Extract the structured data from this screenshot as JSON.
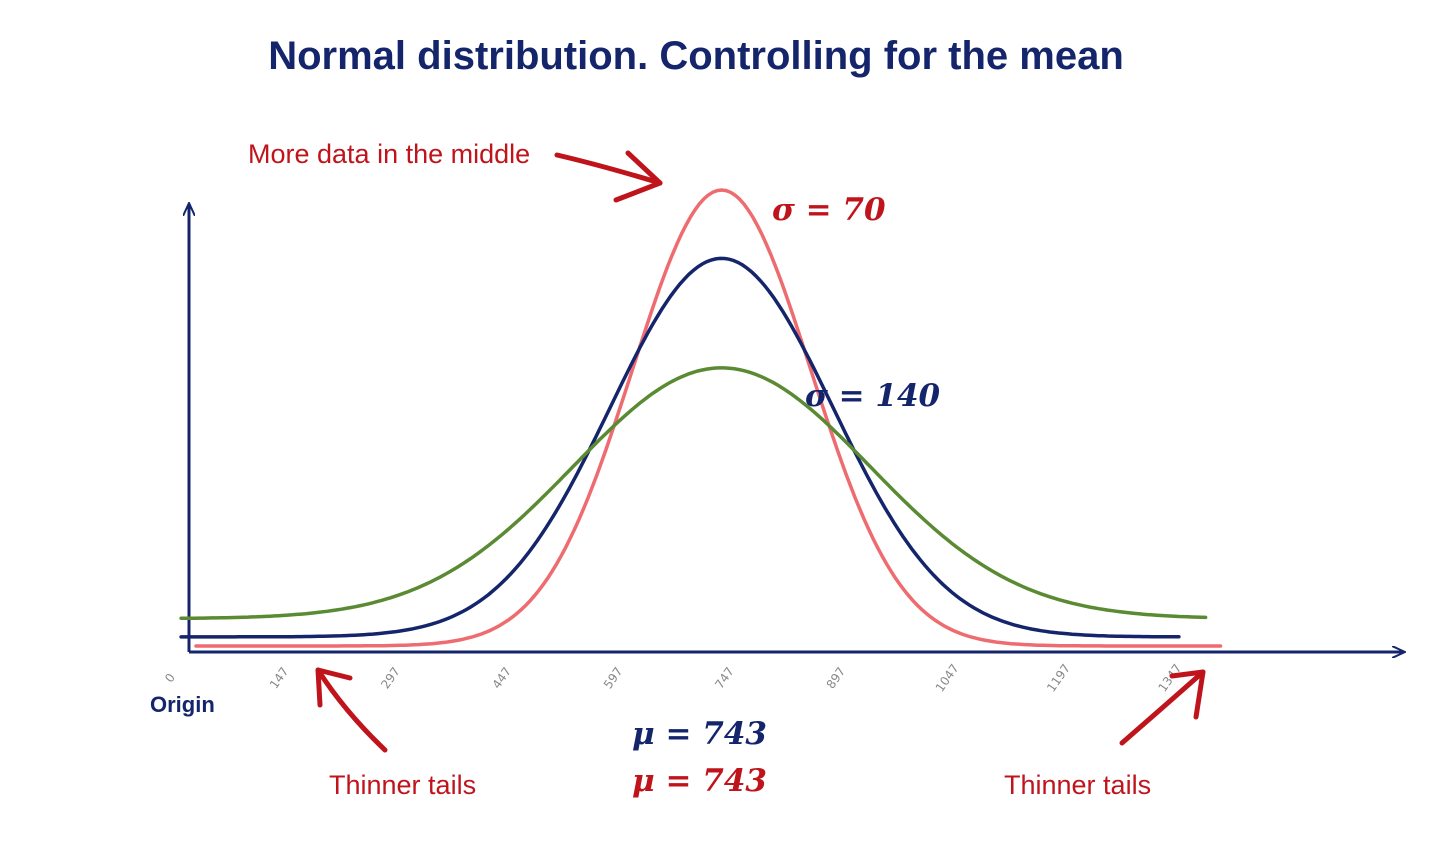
{
  "title": "Normal distribution. Controlling for the mean",
  "colors": {
    "title": "#14256b",
    "axis": "#14256b",
    "annotation": "#c0141c",
    "sigma_70_curve": "#ee6b6f",
    "sigma_140_curve": "#14256b",
    "wide_curve": "#5a8a32"
  },
  "annotations": {
    "middle": "More data in the middle",
    "tails_left": "Thinner tails",
    "tails_right": "Thinner tails",
    "origin": "Origin"
  },
  "labels": {
    "sigma_70": "σ = 70",
    "sigma_140": "σ = 140",
    "mu_blue": "μ = 743",
    "mu_red": "μ = 743"
  },
  "chart_data": {
    "type": "line",
    "title": "Normal distribution. Controlling for the mean",
    "xticks": [
      "0",
      "147",
      "297",
      "447",
      "597",
      "747",
      "897",
      "1047",
      "1197",
      "1347"
    ],
    "xlim": [
      0,
      1347
    ],
    "grid": false,
    "series": [
      {
        "name": "σ = 70",
        "mean": 743,
        "peak": 1.0,
        "baseline": 0.0,
        "color": "#ee6b6f"
      },
      {
        "name": "σ = 140",
        "mean": 743,
        "peak": 0.85,
        "baseline": 0.02,
        "color": "#14256b"
      },
      {
        "mean": 743,
        "peak": 0.61,
        "baseline": 0.06,
        "color": "#5a8a32"
      }
    ]
  }
}
